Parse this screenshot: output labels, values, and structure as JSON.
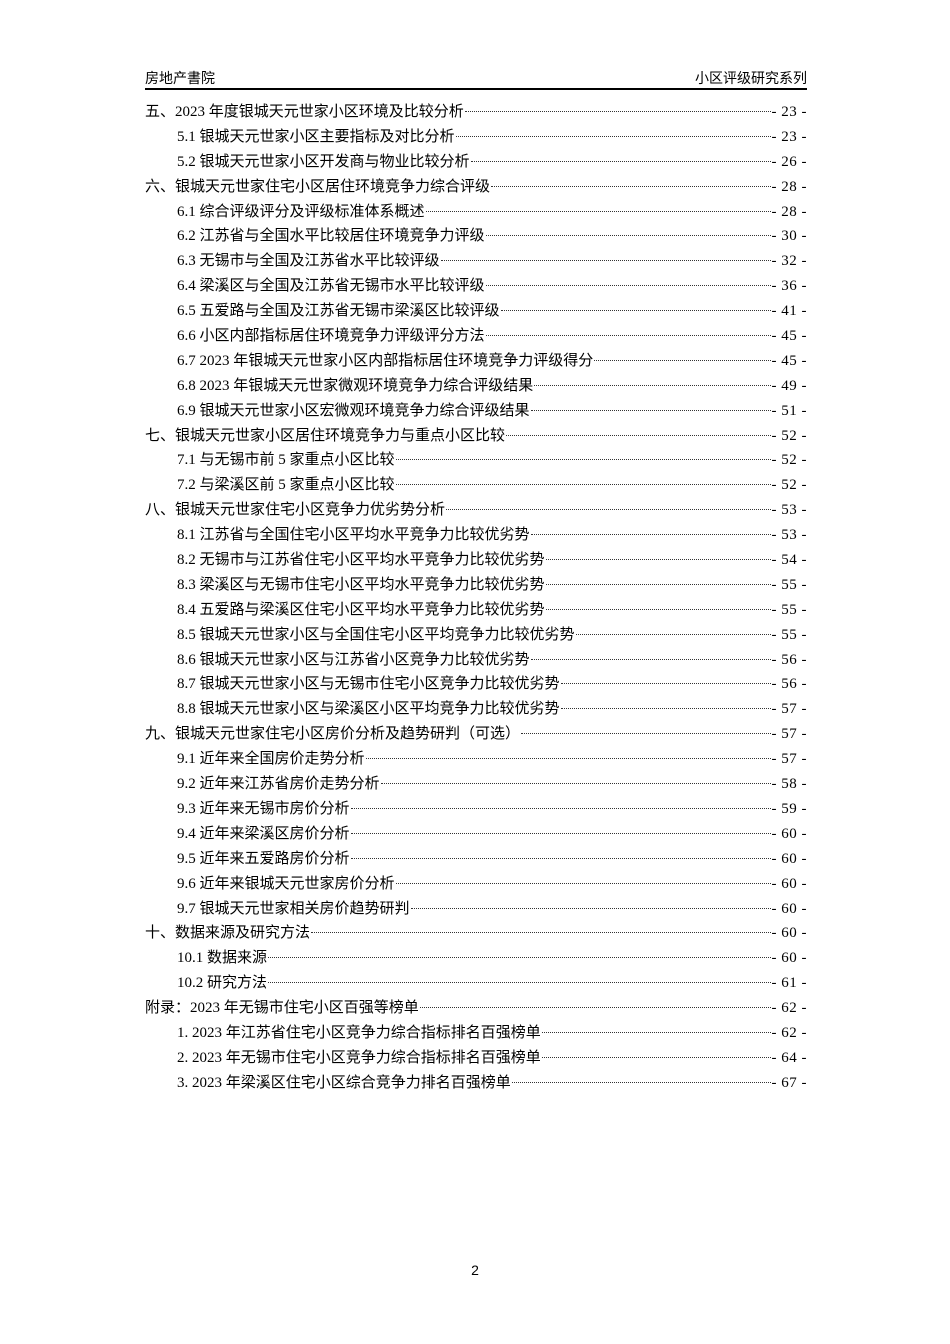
{
  "header": {
    "left": "房地产書院",
    "right": "小区评级研究系列"
  },
  "toc": [
    {
      "level": 1,
      "title": "五、2023 年度银城天元世家小区环境及比较分析",
      "page": "- 23 -"
    },
    {
      "level": 2,
      "title": "5.1 银城天元世家小区主要指标及对比分析",
      "page": "- 23 -"
    },
    {
      "level": 2,
      "title": "5.2 银城天元世家小区开发商与物业比较分析",
      "page": "- 26 -"
    },
    {
      "level": 1,
      "title": "六、银城天元世家住宅小区居住环境竞争力综合评级",
      "page": "- 28 -"
    },
    {
      "level": 2,
      "title": "6.1 综合评级评分及评级标准体系概述",
      "page": "- 28 -"
    },
    {
      "level": 2,
      "title": "6.2 江苏省与全国水平比较居住环境竞争力评级",
      "page": "- 30 -"
    },
    {
      "level": 2,
      "title": "6.3 无锡市与全国及江苏省水平比较评级",
      "page": "- 32 -"
    },
    {
      "level": 2,
      "title": "6.4 梁溪区与全国及江苏省无锡市水平比较评级",
      "page": "- 36 -"
    },
    {
      "level": 2,
      "title": "6.5 五爱路与全国及江苏省无锡市梁溪区比较评级",
      "page": "- 41 -"
    },
    {
      "level": 2,
      "title": "6.6 小区内部指标居住环境竞争力评级评分方法",
      "page": "- 45 -"
    },
    {
      "level": 2,
      "title": "6.7 2023 年银城天元世家小区内部指标居住环境竞争力评级得分",
      "page": "- 45 -"
    },
    {
      "level": 2,
      "title": "6.8 2023 年银城天元世家微观环境竞争力综合评级结果",
      "page": "- 49 -"
    },
    {
      "level": 2,
      "title": "6.9 银城天元世家小区宏微观环境竞争力综合评级结果",
      "page": "- 51 -"
    },
    {
      "level": 1,
      "title": "七、银城天元世家小区居住环境竞争力与重点小区比较",
      "page": "- 52 -"
    },
    {
      "level": 2,
      "title": "7.1 与无锡市前 5 家重点小区比较",
      "page": "- 52 -"
    },
    {
      "level": 2,
      "title": "7.2 与梁溪区前 5 家重点小区比较",
      "page": "- 52 -"
    },
    {
      "level": 1,
      "title": "八、银城天元世家住宅小区竞争力优劣势分析",
      "page": "- 53 -"
    },
    {
      "level": 2,
      "title": "8.1 江苏省与全国住宅小区平均水平竞争力比较优劣势",
      "page": "- 53 -"
    },
    {
      "level": 2,
      "title": "8.2 无锡市与江苏省住宅小区平均水平竞争力比较优劣势",
      "page": "- 54 -"
    },
    {
      "level": 2,
      "title": "8.3 梁溪区与无锡市住宅小区平均水平竞争力比较优劣势",
      "page": "- 55 -"
    },
    {
      "level": 2,
      "title": "8.4 五爱路与梁溪区住宅小区平均水平竞争力比较优劣势",
      "page": "- 55 -"
    },
    {
      "level": 2,
      "title": "8.5 银城天元世家小区与全国住宅小区平均竞争力比较优劣势",
      "page": "- 55 -"
    },
    {
      "level": 2,
      "title": "8.6 银城天元世家小区与江苏省小区竞争力比较优劣势",
      "page": "- 56 -"
    },
    {
      "level": 2,
      "title": "8.7 银城天元世家小区与无锡市住宅小区竞争力比较优劣势",
      "page": "- 56 -"
    },
    {
      "level": 2,
      "title": "8.8 银城天元世家小区与梁溪区小区平均竞争力比较优劣势",
      "page": "- 57 -"
    },
    {
      "level": 1,
      "title": "九、银城天元世家住宅小区房价分析及趋势研判（可选）",
      "page": "- 57 -"
    },
    {
      "level": 2,
      "title": "9.1 近年来全国房价走势分析",
      "page": "- 57 -"
    },
    {
      "level": 2,
      "title": "9.2 近年来江苏省房价走势分析",
      "page": "- 58 -"
    },
    {
      "level": 2,
      "title": "9.3 近年来无锡市房价分析",
      "page": "- 59 -"
    },
    {
      "level": 2,
      "title": "9.4 近年来梁溪区房价分析",
      "page": "- 60 -"
    },
    {
      "level": 2,
      "title": "9.5 近年来五爱路房价分析",
      "page": "- 60 -"
    },
    {
      "level": 2,
      "title": "9.6 近年来银城天元世家房价分析",
      "page": "- 60 -"
    },
    {
      "level": 2,
      "title": "9.7 银城天元世家相关房价趋势研判",
      "page": "- 60 -"
    },
    {
      "level": 1,
      "title": "十、数据来源及研究方法",
      "page": "- 60 -"
    },
    {
      "level": 2,
      "title": "10.1 数据来源",
      "page": "- 60 -"
    },
    {
      "level": 2,
      "title": "10.2 研究方法",
      "page": "- 61 -"
    },
    {
      "level": 1,
      "title": "附录：2023 年无锡市住宅小区百强等榜单",
      "page": "- 62 -"
    },
    {
      "level": 2,
      "title": "1. 2023 年江苏省住宅小区竞争力综合指标排名百强榜单",
      "page": "- 62 -"
    },
    {
      "level": 2,
      "title": "2. 2023 年无锡市住宅小区竞争力综合指标排名百强榜单",
      "page": "- 64 -"
    },
    {
      "level": 2,
      "title": "3. 2023 年梁溪区住宅小区综合竞争力排名百强榜单",
      "page": "- 67 -"
    }
  ],
  "footer": {
    "page_number": "2"
  }
}
